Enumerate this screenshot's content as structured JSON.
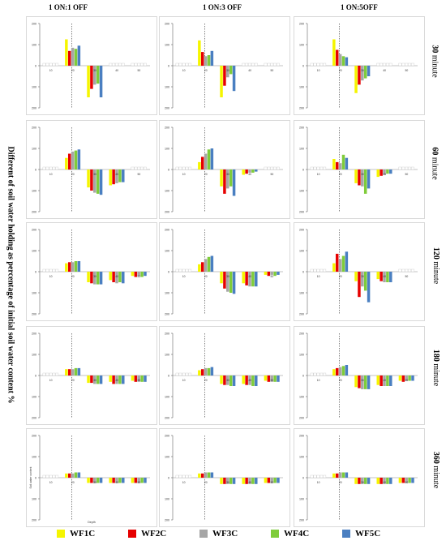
{
  "columns": [
    "1 ON:1 OFF",
    "1 ON:3 OFF",
    "1 ON:5OFF"
  ],
  "rows": [
    {
      "value": "30",
      "unit": "minute"
    },
    {
      "value": "60",
      "unit": "minute"
    },
    {
      "value": "120",
      "unit": "minute"
    },
    {
      "value": "180",
      "unit": "minute"
    },
    {
      "value": "360",
      "unit": "minute"
    }
  ],
  "ylabel": "Different of soil water holding as percentage of initial soil water content %",
  "legend": [
    {
      "name": "WF1C",
      "color": "#f5f500"
    },
    {
      "name": "WF2C",
      "color": "#e60000"
    },
    {
      "name": "WF3C",
      "color": "#a6a6a6"
    },
    {
      "name": "WF4C",
      "color": "#7fcc3a"
    },
    {
      "name": "WF5C",
      "color": "#4a7fc1"
    }
  ],
  "chart_data": {
    "type": "bar",
    "ylim": [
      -200,
      200
    ],
    "yticks": [
      200,
      100,
      0,
      -100,
      -200
    ],
    "depth_labels": [
      "10",
      "20",
      "30",
      "40",
      "50"
    ],
    "series_names": [
      "WF1C",
      "WF2C",
      "WF3C",
      "WF4C",
      "WF5C"
    ],
    "panel_extra_labels": {
      "ylabel": "Soil water content",
      "xlabel": "Depth"
    },
    "panels": [
      {
        "row": "30",
        "col": "1 ON:1 OFF",
        "values": [
          [
            0,
            0,
            0,
            0,
            0
          ],
          [
            125,
            70,
            85,
            80,
            95
          ],
          [
            -150,
            -110,
            -90,
            -85,
            -150
          ],
          [
            0,
            0,
            0,
            0,
            0
          ],
          [
            0,
            0,
            0,
            0,
            0
          ]
        ]
      },
      {
        "row": "30",
        "col": "1 ON:3 OFF",
        "values": [
          [
            0,
            0,
            0,
            0,
            0
          ],
          [
            120,
            65,
            45,
            50,
            70
          ],
          [
            -150,
            -95,
            -55,
            -40,
            -120
          ],
          [
            0,
            0,
            0,
            0,
            0
          ],
          [
            0,
            0,
            0,
            0,
            0
          ]
        ]
      },
      {
        "row": "30",
        "col": "1 ON:5OFF",
        "values": [
          [
            0,
            0,
            0,
            0,
            0
          ],
          [
            125,
            75,
            55,
            45,
            40
          ],
          [
            -130,
            -90,
            -70,
            -60,
            -50
          ],
          [
            0,
            0,
            0,
            0,
            0
          ],
          [
            0,
            0,
            0,
            0,
            0
          ]
        ]
      },
      {
        "row": "60",
        "col": "1 ON:1 OFF",
        "values": [
          [
            0,
            0,
            0,
            0,
            0
          ],
          [
            55,
            75,
            85,
            90,
            95
          ],
          [
            -85,
            -100,
            -110,
            -115,
            -120
          ],
          [
            -75,
            -70,
            -65,
            -60,
            -60
          ],
          [
            0,
            0,
            0,
            0,
            0
          ]
        ]
      },
      {
        "row": "60",
        "col": "1 ON:3 OFF",
        "values": [
          [
            0,
            0,
            0,
            0,
            0
          ],
          [
            35,
            60,
            75,
            95,
            100
          ],
          [
            -80,
            -115,
            -90,
            -80,
            -125
          ],
          [
            -25,
            -20,
            -15,
            -15,
            -10
          ],
          [
            0,
            0,
            0,
            0,
            0
          ]
        ]
      },
      {
        "row": "60",
        "col": "1 ON:5OFF",
        "values": [
          [
            0,
            0,
            0,
            0,
            0
          ],
          [
            50,
            35,
            30,
            70,
            55
          ],
          [
            -65,
            -75,
            -80,
            -115,
            -90
          ],
          [
            -35,
            -30,
            -25,
            -20,
            -20
          ],
          [
            0,
            0,
            0,
            0,
            0
          ]
        ]
      },
      {
        "row": "120",
        "col": "1 ON:1 OFF",
        "values": [
          [
            0,
            0,
            0,
            0,
            0
          ],
          [
            40,
            45,
            45,
            50,
            50
          ],
          [
            -50,
            -55,
            -60,
            -60,
            -60
          ],
          [
            -40,
            -50,
            -55,
            -50,
            -55
          ],
          [
            -20,
            -25,
            -20,
            -25,
            -20
          ]
        ]
      },
      {
        "row": "120",
        "col": "1 ON:3 OFF",
        "values": [
          [
            0,
            0,
            0,
            0,
            0
          ],
          [
            35,
            45,
            60,
            70,
            75
          ],
          [
            -55,
            -80,
            -95,
            -100,
            -105
          ],
          [
            -55,
            -65,
            -70,
            -70,
            -70
          ],
          [
            -15,
            -20,
            -15,
            -20,
            -15
          ]
        ]
      },
      {
        "row": "120",
        "col": "1 ON:5OFF",
        "values": [
          [
            0,
            0,
            0,
            0,
            0
          ],
          [
            40,
            85,
            60,
            75,
            95
          ],
          [
            -45,
            -120,
            -70,
            -90,
            -145
          ],
          [
            -35,
            -45,
            -50,
            -50,
            -50
          ],
          [
            0,
            0,
            0,
            0,
            0
          ]
        ]
      },
      {
        "row": "180",
        "col": "1 ON:1 OFF",
        "values": [
          [
            0,
            0,
            0,
            0,
            0
          ],
          [
            30,
            30,
            30,
            35,
            35
          ],
          [
            -35,
            -35,
            -40,
            -40,
            -40
          ],
          [
            -30,
            -40,
            -40,
            -40,
            -40
          ],
          [
            -25,
            -30,
            -30,
            -30,
            -30
          ]
        ]
      },
      {
        "row": "180",
        "col": "1 ON:3 OFF",
        "values": [
          [
            0,
            0,
            0,
            0,
            0
          ],
          [
            25,
            30,
            35,
            35,
            40
          ],
          [
            -40,
            -45,
            -45,
            -50,
            -50
          ],
          [
            -40,
            -45,
            -45,
            -50,
            -50
          ],
          [
            -25,
            -30,
            -30,
            -30,
            -30
          ]
        ]
      },
      {
        "row": "180",
        "col": "1 ON:5OFF",
        "values": [
          [
            0,
            0,
            0,
            0,
            0
          ],
          [
            30,
            35,
            40,
            45,
            50
          ],
          [
            -55,
            -60,
            -65,
            -65,
            -65
          ],
          [
            -45,
            -50,
            -50,
            -50,
            -50
          ],
          [
            -25,
            -30,
            -25,
            -25,
            -25
          ]
        ]
      },
      {
        "row": "360",
        "col": "1 ON:1 OFF",
        "values": [
          [
            0,
            0,
            0,
            0,
            0
          ],
          [
            20,
            20,
            20,
            25,
            25
          ],
          [
            -25,
            -25,
            -25,
            -25,
            -25
          ],
          [
            -25,
            -25,
            -25,
            -25,
            -25
          ],
          [
            -25,
            -25,
            -25,
            -25,
            -25
          ]
        ]
      },
      {
        "row": "360",
        "col": "1 ON:3 OFF",
        "values": [
          [
            0,
            0,
            0,
            0,
            0
          ],
          [
            20,
            20,
            25,
            25,
            25
          ],
          [
            -30,
            -30,
            -30,
            -30,
            -30
          ],
          [
            -30,
            -30,
            -30,
            -30,
            -30
          ],
          [
            -25,
            -25,
            -25,
            -25,
            -25
          ]
        ]
      },
      {
        "row": "360",
        "col": "1 ON:5OFF",
        "values": [
          [
            0,
            0,
            0,
            0,
            0
          ],
          [
            20,
            20,
            25,
            25,
            25
          ],
          [
            -30,
            -30,
            -30,
            -30,
            -30
          ],
          [
            -30,
            -30,
            -30,
            -30,
            -30
          ],
          [
            -25,
            -25,
            -25,
            -25,
            -25
          ]
        ]
      }
    ]
  }
}
